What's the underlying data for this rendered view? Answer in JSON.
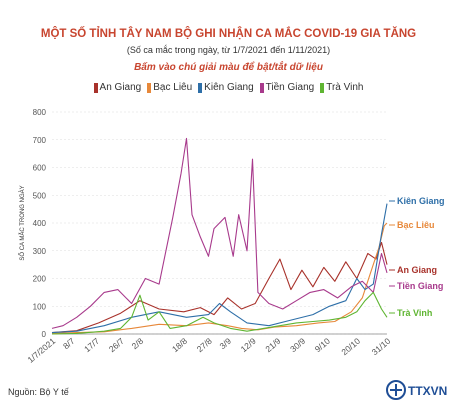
{
  "title": "MỘT SỐ TỈNH TÂY NAM BỘ GHI NHẬN CA MẮC COVID-19 GIA TĂNG",
  "subtitle": "(Số ca mắc trong ngày, từ 1/7/2021 đến 1/11/2021)",
  "hint": "Bấm vào chú giải màu để bật/tắt dữ liệu",
  "source": "Nguồn: Bộ Y tế",
  "logo_text": "TTXVN",
  "chart_data": {
    "type": "line",
    "title": "MỘT SỐ TỈNH TÂY NAM BỘ GHI NHẬN CA MẮC COVID-19 GIA TĂNG",
    "ylabel": "SỐ CA MẮC TRONG NGÀY",
    "xlabel": "",
    "ylim": [
      0,
      800
    ],
    "yticks": [
      0,
      100,
      200,
      300,
      400,
      500,
      600,
      700,
      800
    ],
    "grid": true,
    "legend_position": "top",
    "x_start": "1/7/2021",
    "x_end": "1/11/2021",
    "xticks": [
      "1/7/2021",
      "8/7",
      "17/7",
      "26/7",
      "2/8",
      "18/8",
      "27/8",
      "3/9",
      "12/9",
      "21/9",
      "30/9",
      "9/10",
      "20/10",
      "31/10"
    ],
    "x_positions": [
      1,
      8,
      17,
      26,
      33,
      49,
      58,
      65,
      74,
      83,
      92,
      101,
      112,
      123
    ],
    "end_labels": [
      "Kiên Giang",
      "Bạc Liêu",
      "An Giang",
      "Tiền Giang",
      "Trà Vinh"
    ],
    "series": [
      {
        "name": "An Giang",
        "color": "#a8322b",
        "points": [
          [
            1,
            5
          ],
          [
            10,
            12
          ],
          [
            18,
            40
          ],
          [
            26,
            75
          ],
          [
            33,
            120
          ],
          [
            40,
            90
          ],
          [
            49,
            80
          ],
          [
            55,
            95
          ],
          [
            60,
            70
          ],
          [
            65,
            130
          ],
          [
            70,
            90
          ],
          [
            75,
            110
          ],
          [
            80,
            200
          ],
          [
            84,
            270
          ],
          [
            88,
            160
          ],
          [
            92,
            230
          ],
          [
            96,
            170
          ],
          [
            100,
            240
          ],
          [
            104,
            190
          ],
          [
            108,
            260
          ],
          [
            112,
            200
          ],
          [
            116,
            290
          ],
          [
            119,
            270
          ],
          [
            121,
            330
          ],
          [
            123,
            250
          ]
        ]
      },
      {
        "name": "Bạc Liêu",
        "color": "#e7883a",
        "points": [
          [
            1,
            2
          ],
          [
            10,
            5
          ],
          [
            20,
            8
          ],
          [
            30,
            20
          ],
          [
            40,
            35
          ],
          [
            50,
            30
          ],
          [
            58,
            40
          ],
          [
            65,
            30
          ],
          [
            70,
            20
          ],
          [
            76,
            15
          ],
          [
            82,
            25
          ],
          [
            90,
            30
          ],
          [
            98,
            40
          ],
          [
            104,
            45
          ],
          [
            110,
            80
          ],
          [
            114,
            130
          ],
          [
            117,
            220
          ],
          [
            120,
            310
          ],
          [
            122,
            390
          ],
          [
            123,
            400
          ]
        ]
      },
      {
        "name": "Kiên Giang",
        "color": "#2e6fa8",
        "points": [
          [
            1,
            5
          ],
          [
            10,
            10
          ],
          [
            20,
            30
          ],
          [
            30,
            60
          ],
          [
            40,
            80
          ],
          [
            50,
            60
          ],
          [
            58,
            70
          ],
          [
            62,
            110
          ],
          [
            66,
            80
          ],
          [
            72,
            40
          ],
          [
            80,
            30
          ],
          [
            88,
            50
          ],
          [
            96,
            70
          ],
          [
            102,
            100
          ],
          [
            108,
            120
          ],
          [
            112,
            200
          ],
          [
            115,
            160
          ],
          [
            118,
            180
          ],
          [
            121,
            360
          ],
          [
            123,
            470
          ]
        ]
      },
      {
        "name": "Tiền Giang",
        "color": "#a83a8c",
        "points": [
          [
            1,
            20
          ],
          [
            5,
            30
          ],
          [
            10,
            60
          ],
          [
            15,
            100
          ],
          [
            20,
            150
          ],
          [
            25,
            160
          ],
          [
            30,
            110
          ],
          [
            35,
            200
          ],
          [
            40,
            180
          ],
          [
            45,
            420
          ],
          [
            48,
            580
          ],
          [
            50,
            705
          ],
          [
            52,
            430
          ],
          [
            55,
            350
          ],
          [
            58,
            280
          ],
          [
            60,
            380
          ],
          [
            62,
            400
          ],
          [
            64,
            420
          ],
          [
            67,
            280
          ],
          [
            69,
            430
          ],
          [
            72,
            300
          ],
          [
            74,
            630
          ],
          [
            76,
            150
          ],
          [
            80,
            110
          ],
          [
            85,
            90
          ],
          [
            90,
            120
          ],
          [
            95,
            150
          ],
          [
            100,
            160
          ],
          [
            105,
            130
          ],
          [
            110,
            170
          ],
          [
            114,
            190
          ],
          [
            118,
            150
          ],
          [
            121,
            290
          ],
          [
            123,
            220
          ]
        ]
      },
      {
        "name": "Trà Vinh",
        "color": "#5fb532",
        "points": [
          [
            1,
            0
          ],
          [
            10,
            2
          ],
          [
            20,
            10
          ],
          [
            26,
            20
          ],
          [
            30,
            60
          ],
          [
            33,
            140
          ],
          [
            36,
            50
          ],
          [
            40,
            80
          ],
          [
            44,
            20
          ],
          [
            50,
            30
          ],
          [
            56,
            60
          ],
          [
            60,
            40
          ],
          [
            66,
            20
          ],
          [
            72,
            10
          ],
          [
            78,
            20
          ],
          [
            84,
            30
          ],
          [
            90,
            40
          ],
          [
            96,
            45
          ],
          [
            102,
            50
          ],
          [
            108,
            60
          ],
          [
            112,
            80
          ],
          [
            115,
            120
          ],
          [
            118,
            150
          ],
          [
            121,
            90
          ],
          [
            123,
            60
          ]
        ]
      }
    ]
  }
}
